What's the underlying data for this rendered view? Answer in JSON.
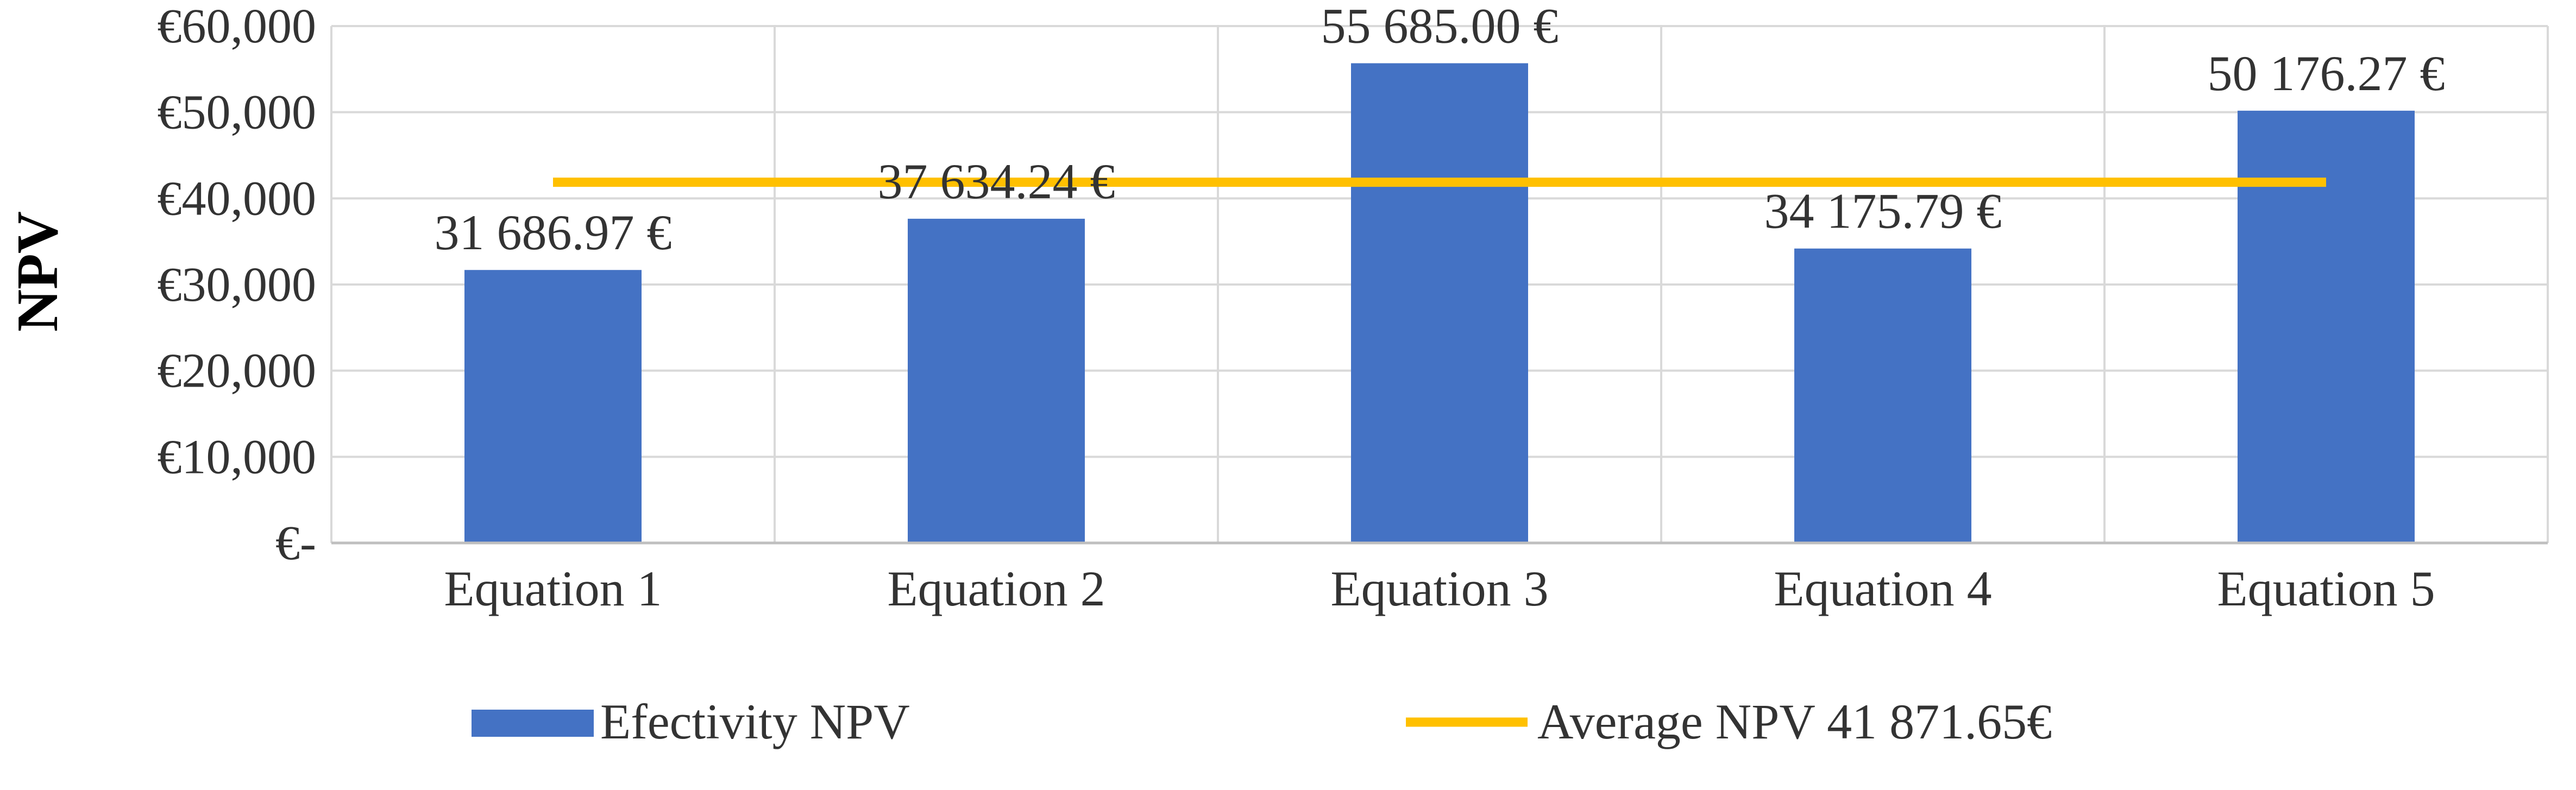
{
  "chart_data": {
    "type": "bar",
    "ylabel": "NPV",
    "ylim": [
      0,
      60000
    ],
    "grid": true,
    "y_ticks": [
      {
        "value": 0,
        "label": "€-"
      },
      {
        "value": 10000,
        "label": "€10,000"
      },
      {
        "value": 20000,
        "label": "€20,000"
      },
      {
        "value": 30000,
        "label": "€30,000"
      },
      {
        "value": 40000,
        "label": "€40,000"
      },
      {
        "value": 50000,
        "label": "€50,000"
      },
      {
        "value": 60000,
        "label": "€60,000"
      }
    ],
    "categories": [
      "Equation 1",
      "Equation 2",
      "Equation 3",
      "Equation 4",
      "Equation 5"
    ],
    "series": [
      {
        "name": "Efectivity NPV",
        "type": "bar",
        "color": "#4472c4",
        "values": [
          31686.97,
          37634.24,
          55685.0,
          34175.79,
          50176.27
        ],
        "data_labels": [
          "31 686.97 €",
          "37 634.24 €",
          "55 685.00 €",
          "34 175.79 €",
          "50 176.27 €"
        ]
      },
      {
        "name": "Average NPV 41 871.65€",
        "type": "line",
        "color": "#ffc000",
        "values": [
          41871.65,
          41871.65,
          41871.65,
          41871.65,
          41871.65
        ]
      }
    ],
    "legend_position": "bottom"
  }
}
